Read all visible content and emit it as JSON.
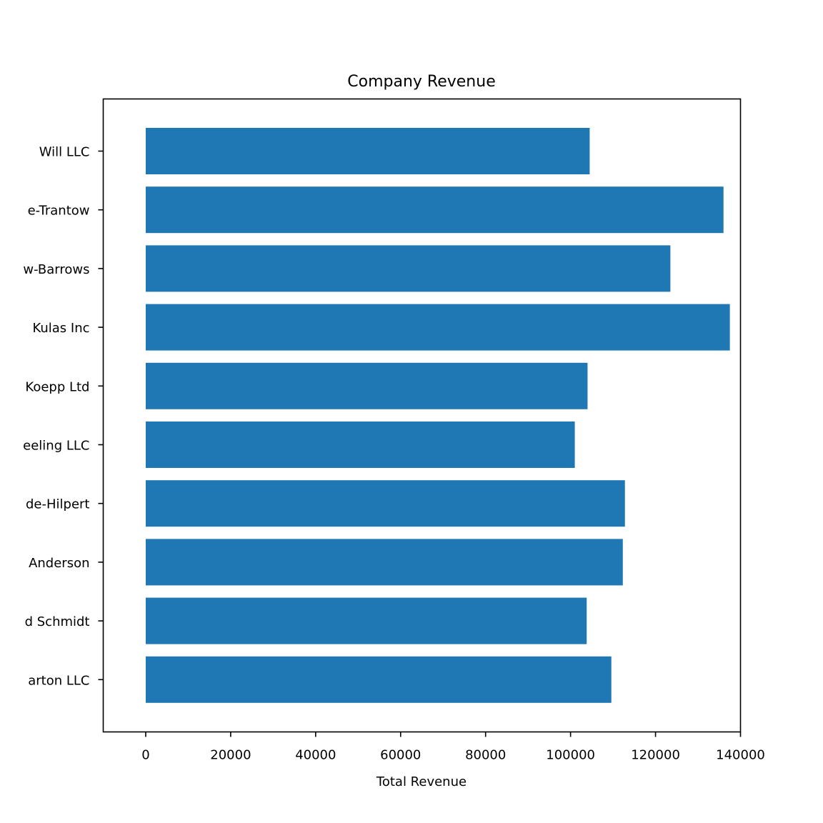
{
  "chart_data": {
    "type": "bar",
    "orientation": "horizontal",
    "title": "Company Revenue",
    "xlabel": "Total Revenue",
    "ylabel": "",
    "categories": [
      "Will LLC",
      "e-Trantow",
      "w-Barrows",
      "Kulas Inc",
      "Koepp Ltd",
      "eeling LLC",
      "de-Hilpert",
      "Anderson",
      "d Schmidt",
      "arton LLC"
    ],
    "values": [
      104500,
      136000,
      123500,
      137500,
      104000,
      101000,
      112800,
      112300,
      103800,
      109600
    ],
    "xlim": [
      -10000,
      140000
    ],
    "xticks": [
      0,
      20000,
      40000,
      60000,
      80000,
      100000,
      120000,
      140000
    ],
    "xtick_labels": [
      "0",
      "20000",
      "40000",
      "60000",
      "80000",
      "100000",
      "120000",
      "140000"
    ],
    "grid": false,
    "legend": "none",
    "bar_color": "#1f77b4"
  }
}
